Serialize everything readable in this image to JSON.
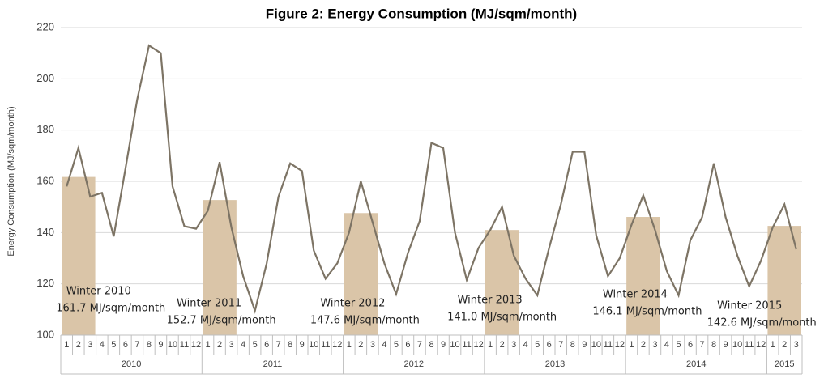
{
  "chart_data": {
    "type": "line",
    "title": "Figure 2: Energy Consumption (MJ/sqm/month)",
    "y_label": "Energy Consumption (MJ/sqm/month)",
    "categories": [
      "1",
      "2",
      "3",
      "4",
      "5",
      "6",
      "7",
      "8",
      "9",
      "10",
      "11",
      "12",
      "1",
      "2",
      "3",
      "4",
      "5",
      "6",
      "7",
      "8",
      "9",
      "10",
      "11",
      "12",
      "1",
      "2",
      "3",
      "4",
      "5",
      "6",
      "7",
      "8",
      "9",
      "10",
      "11",
      "12",
      "1",
      "2",
      "3",
      "4",
      "5",
      "6",
      "7",
      "8",
      "9",
      "10",
      "11",
      "12",
      "1",
      "2",
      "3",
      "4",
      "5",
      "6",
      "7",
      "8",
      "9",
      "10",
      "11",
      "12",
      "1",
      "2",
      "3"
    ],
    "x_groups": [
      "2010",
      "2011",
      "2012",
      "2013",
      "2014",
      "2015"
    ],
    "series": [
      {
        "color": "#7d7465",
        "values": [
          158,
          173,
          154,
          155.5,
          138.5,
          165,
          192,
          213,
          210,
          158,
          142.5,
          141.5,
          148.5,
          167.5,
          142,
          123,
          109.5,
          128,
          154,
          167,
          164,
          133,
          122,
          128,
          140,
          160,
          144,
          128,
          116,
          132,
          144.5,
          175,
          173,
          140,
          121.5,
          134,
          141,
          150,
          131,
          122,
          115.5,
          134,
          151,
          171.5,
          171.5,
          139,
          123,
          130,
          143,
          154.5,
          141,
          125,
          115.5,
          137,
          146,
          167,
          146,
          131,
          119,
          129,
          142,
          151,
          133.5
        ]
      }
    ],
    "winter": {
      "color": "#dac5a8",
      "labels": [
        "Winter 2010",
        "Winter 2011",
        "Winter 2012",
        "Winter 2013",
        "Winter 2014",
        "Winter 2015"
      ],
      "values": [
        161.7,
        152.7,
        147.6,
        141.0,
        146.1,
        142.6
      ],
      "value_labels": [
        "161.7 MJ/sqm/month",
        "152.7 MJ/sqm/month",
        "147.6 MJ/sqm/month",
        "141.0 MJ/sqm/month",
        "146.1 MJ/sqm/month",
        "142.6 MJ/sqm/month"
      ]
    },
    "ylim": [
      100,
      220
    ],
    "yticks": [
      100,
      120,
      140,
      160,
      180,
      200,
      220
    ],
    "grid": true
  }
}
